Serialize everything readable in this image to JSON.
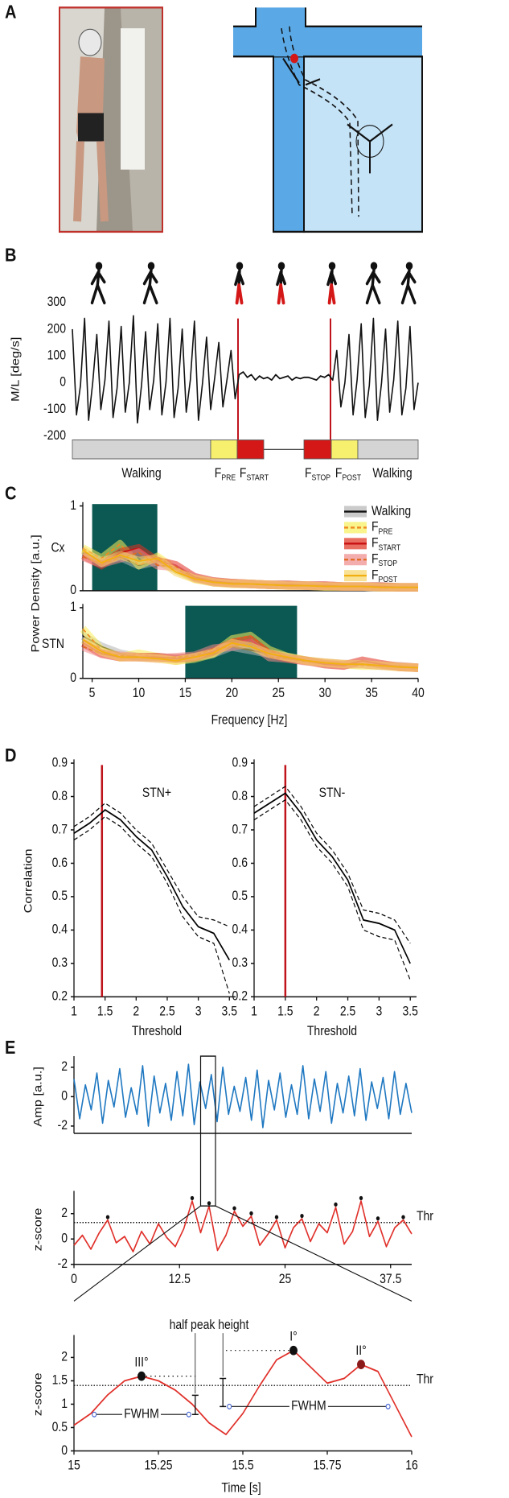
{
  "panel_labels": [
    "A",
    "B",
    "C",
    "D",
    "E"
  ],
  "chart_data": [
    {
      "type": "line",
      "ylabel": "M/L [deg/s]",
      "ylim": [
        -200,
        300
      ],
      "yticks": [
        -200,
        -100,
        0,
        100,
        200,
        300
      ],
      "series": [
        {
          "color": "#111111",
          "values": [
            200,
            -120,
            -10,
            240,
            -140,
            0,
            180,
            -100,
            10,
            230,
            -130,
            -20,
            210,
            -110,
            0,
            250,
            -150,
            -10,
            190,
            -100,
            10,
            220,
            -120,
            0,
            240,
            -130,
            -20,
            200,
            -110,
            10,
            230,
            -140,
            0,
            170,
            -100,
            20,
            150,
            -90,
            10,
            120,
            -60,
            30,
            40,
            20,
            30,
            10,
            25,
            15,
            20,
            10,
            30,
            15,
            20,
            25,
            10,
            20,
            15,
            20,
            20,
            15,
            10,
            25,
            20,
            30,
            10,
            120,
            -90,
            0,
            180,
            -120,
            10,
            220,
            -130,
            -10,
            240,
            -140,
            0,
            200,
            -110,
            10,
            230,
            -120,
            -20,
            210,
            -100,
            0
          ]
        }
      ],
      "phases": [
        {
          "label": "Walking",
          "color": "#d4d4d4"
        },
        {
          "label": "FPRE",
          "color": "#f7f06e"
        },
        {
          "label": "FSTART",
          "color": "#d41818"
        },
        {
          "label": "FSTOP",
          "color": "#d41818"
        },
        {
          "label": "FPOST",
          "color": "#f7f06e"
        },
        {
          "label": "Walking",
          "color": "#d4d4d4"
        }
      ]
    },
    {
      "type": "line",
      "title": "Cx",
      "ylabel": "Power Density [a.u.]",
      "xlim": [
        4,
        40
      ],
      "ylim": [
        0,
        1
      ],
      "yticks": [
        0,
        1
      ],
      "highlight": [
        5,
        12
      ],
      "highlight_color": "#0c5953",
      "legend": "upper right",
      "x": [
        4,
        6,
        8,
        10,
        12,
        14,
        16,
        18,
        20,
        22,
        24,
        26,
        28,
        30,
        32,
        34,
        36,
        38,
        40
      ],
      "series": [
        {
          "name": "Walking",
          "color": "#111111",
          "band_color": "#b5b5b5",
          "values": [
            0.45,
            0.35,
            0.4,
            0.3,
            0.35,
            0.25,
            0.15,
            0.1,
            0.09,
            0.08,
            0.07,
            0.07,
            0.06,
            0.06,
            0.05,
            0.05,
            0.05,
            0.04,
            0.04
          ]
        },
        {
          "name": "FPRE",
          "color": "#f08a20",
          "band_color": "#f7ef5a",
          "dash": true,
          "values": [
            0.5,
            0.38,
            0.55,
            0.3,
            0.4,
            0.25,
            0.14,
            0.1,
            0.09,
            0.08,
            0.07,
            0.06,
            0.06,
            0.05,
            0.05,
            0.05,
            0.04,
            0.04,
            0.04
          ]
        },
        {
          "name": "FSTART",
          "color": "#c81010",
          "band_color": "#e03020",
          "values": [
            0.42,
            0.3,
            0.45,
            0.5,
            0.35,
            0.3,
            0.16,
            0.11,
            0.09,
            0.08,
            0.07,
            0.07,
            0.06,
            0.06,
            0.05,
            0.05,
            0.05,
            0.04,
            0.04
          ]
        },
        {
          "name": "FSTOP",
          "color": "#e06a20",
          "band_color": "#f08a8a",
          "dash": true,
          "values": [
            0.4,
            0.32,
            0.38,
            0.45,
            0.3,
            0.28,
            0.15,
            0.1,
            0.09,
            0.08,
            0.07,
            0.06,
            0.06,
            0.06,
            0.05,
            0.05,
            0.04,
            0.04,
            0.04
          ]
        },
        {
          "name": "FPOST",
          "color": "#f2b010",
          "band_color": "#f7d66a",
          "values": [
            0.48,
            0.33,
            0.42,
            0.35,
            0.38,
            0.22,
            0.14,
            0.1,
            0.08,
            0.08,
            0.07,
            0.06,
            0.06,
            0.05,
            0.05,
            0.05,
            0.04,
            0.04,
            0.04
          ]
        }
      ]
    },
    {
      "type": "line",
      "title": "STN",
      "xlabel": "Frequency [Hz]",
      "xlim": [
        4,
        40
      ],
      "ylim": [
        0,
        1
      ],
      "yticks": [
        0,
        1
      ],
      "xticks": [
        5,
        10,
        15,
        20,
        25,
        30,
        35,
        40
      ],
      "highlight": [
        15,
        27
      ],
      "highlight_color": "#0c5953",
      "x": [
        4,
        6,
        8,
        10,
        12,
        14,
        16,
        18,
        20,
        22,
        24,
        26,
        28,
        30,
        32,
        34,
        36,
        38,
        40
      ],
      "series": [
        {
          "color": "#111111",
          "band_color": "#b5b5b5",
          "values": [
            0.6,
            0.45,
            0.35,
            0.3,
            0.3,
            0.28,
            0.3,
            0.35,
            0.45,
            0.4,
            0.35,
            0.3,
            0.25,
            0.22,
            0.2,
            0.2,
            0.18,
            0.17,
            0.15
          ]
        },
        {
          "color": "#f08a20",
          "band_color": "#f7ef5a",
          "dash": true,
          "values": [
            0.7,
            0.4,
            0.3,
            0.35,
            0.3,
            0.25,
            0.28,
            0.35,
            0.55,
            0.6,
            0.4,
            0.3,
            0.25,
            0.22,
            0.2,
            0.18,
            0.18,
            0.16,
            0.15
          ]
        },
        {
          "color": "#c81010",
          "band_color": "#e03020",
          "values": [
            0.5,
            0.35,
            0.3,
            0.3,
            0.3,
            0.28,
            0.3,
            0.38,
            0.5,
            0.55,
            0.35,
            0.28,
            0.25,
            0.2,
            0.18,
            0.25,
            0.2,
            0.16,
            0.15
          ]
        },
        {
          "color": "#e06a20",
          "band_color": "#f08a8a",
          "dash": true,
          "values": [
            0.45,
            0.35,
            0.32,
            0.3,
            0.28,
            0.3,
            0.32,
            0.42,
            0.45,
            0.5,
            0.3,
            0.28,
            0.24,
            0.22,
            0.2,
            0.2,
            0.18,
            0.17,
            0.15
          ]
        },
        {
          "color": "#f2b010",
          "band_color": "#f7d66a",
          "values": [
            0.55,
            0.38,
            0.3,
            0.3,
            0.28,
            0.25,
            0.3,
            0.36,
            0.5,
            0.45,
            0.35,
            0.3,
            0.25,
            0.22,
            0.2,
            0.2,
            0.18,
            0.16,
            0.15
          ]
        }
      ]
    },
    {
      "type": "line",
      "title": "STN+",
      "ylabel": "Correlation",
      "xlabel": "Threshold",
      "xlim": [
        1,
        3.6
      ],
      "ylim": [
        0.2,
        0.9
      ],
      "yticks": [
        0.2,
        0.3,
        0.4,
        0.5,
        0.6,
        0.7,
        0.8,
        0.9
      ],
      "xticks": [
        1,
        1.5,
        2,
        2.5,
        3,
        3.5
      ],
      "marker_x": 1.45,
      "marker_color": "#c0141c",
      "x": [
        1,
        1.25,
        1.5,
        1.75,
        2,
        2.25,
        2.5,
        2.75,
        3,
        3.25,
        3.5
      ],
      "series": [
        {
          "color": "#000000",
          "values": [
            0.69,
            0.72,
            0.76,
            0.73,
            0.68,
            0.64,
            0.56,
            0.47,
            0.41,
            0.39,
            0.31
          ]
        },
        {
          "color": "#000000",
          "dash": true,
          "values": [
            0.71,
            0.74,
            0.78,
            0.75,
            0.7,
            0.66,
            0.58,
            0.5,
            0.44,
            0.43,
            0.41
          ]
        },
        {
          "color": "#000000",
          "dash": true,
          "values": [
            0.67,
            0.7,
            0.74,
            0.71,
            0.66,
            0.62,
            0.54,
            0.44,
            0.38,
            0.36,
            0.21
          ]
        }
      ]
    },
    {
      "type": "line",
      "title": "STN-",
      "xlabel": "Threshold",
      "xlim": [
        1,
        3.6
      ],
      "ylim": [
        0.2,
        0.9
      ],
      "yticks": [
        0.2,
        0.3,
        0.4,
        0.5,
        0.6,
        0.7,
        0.8,
        0.9
      ],
      "xticks": [
        1,
        1.5,
        2,
        2.5,
        3,
        3.5
      ],
      "marker_x": 1.5,
      "marker_color": "#c0141c",
      "x": [
        1,
        1.25,
        1.5,
        1.75,
        2,
        2.25,
        2.5,
        2.75,
        3,
        3.25,
        3.5
      ],
      "series": [
        {
          "color": "#000000",
          "values": [
            0.75,
            0.78,
            0.81,
            0.75,
            0.67,
            0.62,
            0.55,
            0.43,
            0.42,
            0.4,
            0.3
          ]
        },
        {
          "color": "#000000",
          "dash": true,
          "values": [
            0.77,
            0.8,
            0.83,
            0.77,
            0.69,
            0.64,
            0.57,
            0.46,
            0.45,
            0.43,
            0.36
          ]
        },
        {
          "color": "#000000",
          "dash": true,
          "values": [
            0.73,
            0.76,
            0.79,
            0.73,
            0.65,
            0.6,
            0.53,
            0.4,
            0.38,
            0.37,
            0.25
          ]
        }
      ]
    },
    {
      "type": "line",
      "ylabel": "Amp [a.u.]",
      "ylim": [
        -2.5,
        2.5
      ],
      "yticks": [
        -2,
        0,
        2
      ],
      "series": [
        {
          "color": "#1f78c1",
          "values": [
            1.2,
            -1.5,
            0.8,
            -0.9,
            1.6,
            -1.8,
            1.1,
            -0.7,
            1.9,
            -1.4,
            0.6,
            -1.2,
            2.1,
            -2,
            1.4,
            -1.1,
            0.9,
            -1.6,
            1.7,
            -1.3,
            2.2,
            -1.9,
            1.0,
            -0.8,
            1.5,
            -1.7,
            2.0,
            -1.2,
            0.7,
            -1.0,
            1.3,
            -1.6,
            1.8,
            -2.1,
            1.1,
            -0.9,
            1.6,
            -1.4,
            0.8,
            -1.2,
            2.1,
            -1.5,
            1.2,
            -1.0,
            1.7,
            -1.8,
            0.9,
            -1.1,
            1.4,
            -1.3,
            1.9,
            -1.6,
            1.0,
            -0.8,
            1.3,
            -1.5,
            1.7,
            -1.2,
            0.9,
            -1.1
          ]
        }
      ]
    },
    {
      "type": "line",
      "ylabel": "z-score",
      "xlim": [
        0,
        40
      ],
      "ylim": [
        -2,
        3.5
      ],
      "yticks": [
        -2,
        0,
        2
      ],
      "xticks": [
        0,
        12.5,
        25,
        37.5
      ],
      "threshold": 1.3,
      "threshold_label": "Thr",
      "zoom": [
        15,
        16
      ],
      "x": [
        0,
        1,
        2,
        3,
        4,
        5,
        6,
        7,
        8,
        9,
        10,
        11,
        12,
        13,
        14,
        15,
        16,
        17,
        18,
        19,
        20,
        21,
        22,
        23,
        24,
        25,
        26,
        27,
        28,
        29,
        30,
        31,
        32,
        33,
        34,
        35,
        36,
        37,
        38,
        39,
        40
      ],
      "series": [
        {
          "color": "#e0302a",
          "values": [
            -0.5,
            0.3,
            -0.8,
            0.5,
            1.5,
            -0.3,
            0.2,
            -1,
            0.6,
            -0.4,
            1.2,
            0.1,
            -0.6,
            0.8,
            3,
            0.5,
            2.6,
            -0.9,
            0.3,
            2.2,
            1,
            1.8,
            -0.5,
            0.4,
            1.5,
            -0.7,
            0.9,
            1.6,
            -0.2,
            1.2,
            0.5,
            2.5,
            -0.4,
            0.6,
            3,
            0.2,
            1.4,
            -0.6,
            0.9,
            1.5,
            0.4
          ]
        }
      ]
    },
    {
      "type": "line",
      "ylabel": "z-score",
      "xlabel": "Time [s]",
      "xlim": [
        15,
        16
      ],
      "ylim": [
        0,
        2.4
      ],
      "yticks": [
        0,
        0.5,
        1,
        1.5,
        2
      ],
      "xticks": [
        15,
        15.25,
        15.5,
        15.75,
        16
      ],
      "threshold": 1.4,
      "threshold_label": "Thr",
      "peak_labels": [
        "III°",
        "I°",
        "II°"
      ],
      "annotation": "half peak height",
      "fwhm": [
        {
          "label": "FWHM",
          "from": 15.06,
          "to": 15.34,
          "level": 0.78
        },
        {
          "label": "FWHM",
          "from": 15.46,
          "to": 15.93,
          "level": 0.95
        }
      ],
      "x": [
        15,
        15.05,
        15.1,
        15.15,
        15.2,
        15.25,
        15.3,
        15.35,
        15.4,
        15.45,
        15.5,
        15.55,
        15.6,
        15.65,
        15.7,
        15.75,
        15.8,
        15.85,
        15.9,
        15.95,
        16
      ],
      "series": [
        {
          "color": "#e0302a",
          "values": [
            0.55,
            0.8,
            1.2,
            1.5,
            1.6,
            1.5,
            1.3,
            1.0,
            0.6,
            0.35,
            0.8,
            1.4,
            1.95,
            2.15,
            1.8,
            1.45,
            1.55,
            1.85,
            1.7,
            1.0,
            0.3
          ]
        }
      ]
    }
  ]
}
